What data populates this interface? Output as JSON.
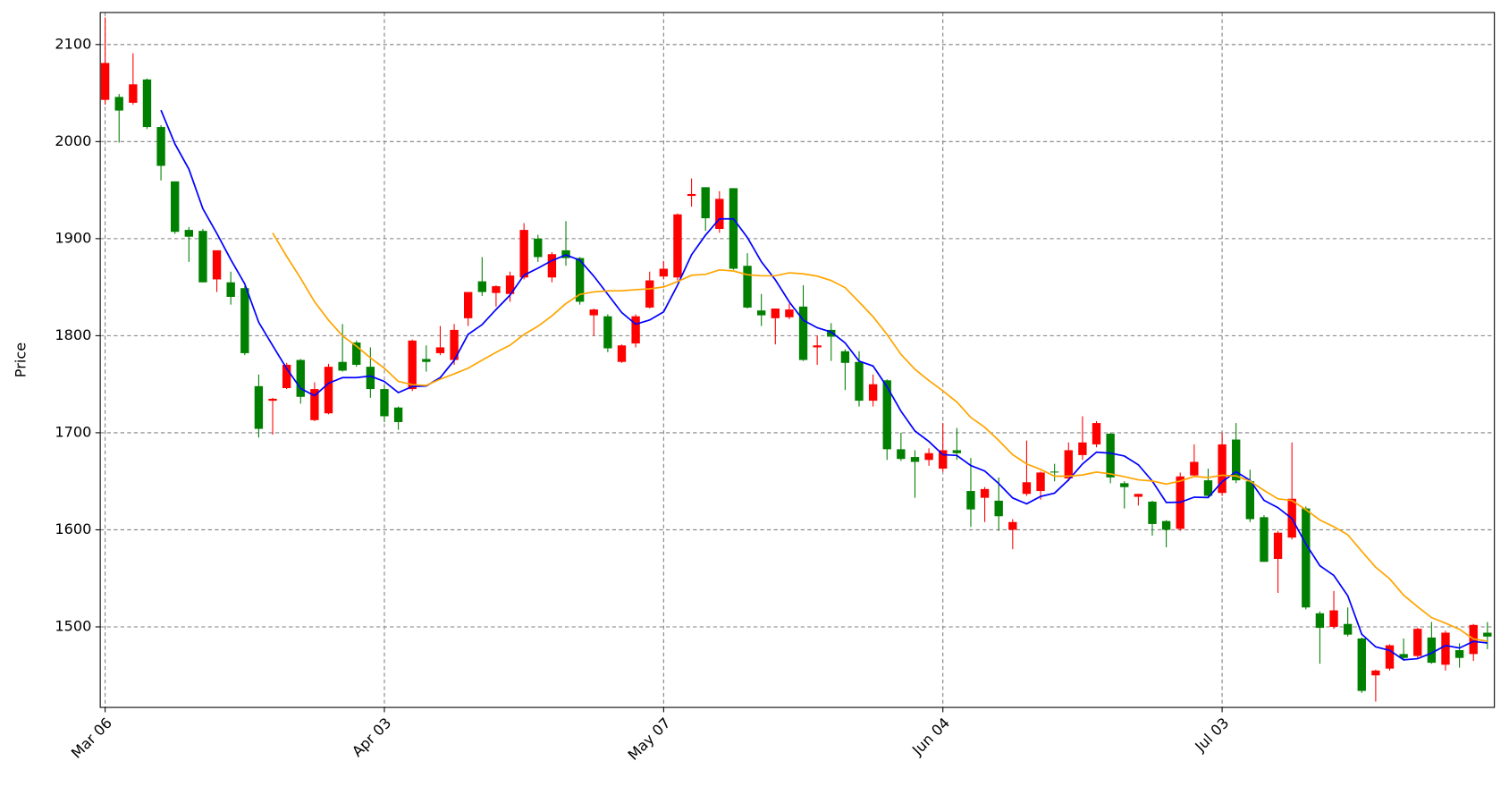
{
  "chart_data": {
    "type": "candlestick",
    "ylabel": "Price",
    "categories": [
      "Mar 06",
      null,
      null,
      null,
      null,
      null,
      null,
      null,
      null,
      null,
      null,
      null,
      null,
      null,
      null,
      null,
      null,
      null,
      null,
      null,
      "Apr 03",
      null,
      null,
      null,
      null,
      null,
      null,
      null,
      null,
      null,
      null,
      null,
      null,
      null,
      null,
      null,
      null,
      null,
      null,
      null,
      "May 07",
      null,
      null,
      null,
      null,
      null,
      null,
      null,
      null,
      null,
      null,
      null,
      null,
      null,
      null,
      null,
      null,
      null,
      null,
      null,
      "Jun 04",
      null,
      null,
      null,
      null,
      null,
      null,
      null,
      null,
      null,
      null,
      null,
      null,
      null,
      null,
      null,
      null,
      null,
      null,
      null,
      "Jul 03",
      null,
      null,
      null,
      null,
      null,
      null,
      null,
      null,
      null,
      null,
      null,
      null,
      null,
      null,
      null,
      null,
      null,
      null,
      null
    ],
    "open": [
      2043,
      2046,
      2040,
      2064,
      2015,
      1959,
      1909,
      1908,
      1858,
      1855,
      1849,
      1748,
      1733,
      1746,
      1775,
      1713,
      1720,
      1773,
      1793,
      1768,
      1745,
      1726,
      1745,
      1776,
      1782,
      1775,
      1818,
      1856,
      1844,
      1843,
      1860,
      1900,
      1860,
      1888,
      1880,
      1821,
      1820,
      1773,
      1792,
      1829,
      1861,
      1860,
      1944,
      1953,
      1910,
      1952,
      1872,
      1826,
      1818,
      1819,
      1830,
      1788,
      1806,
      1784,
      1773,
      1733,
      1754,
      1683,
      1675,
      1672,
      1663,
      1682,
      1640,
      1633,
      1630,
      1600,
      1637,
      1640,
      1660,
      1653,
      1677,
      1688,
      1699,
      1648,
      1634,
      1629,
      1609,
      1601,
      1656,
      1651,
      1638,
      1693,
      1650,
      1613,
      1570,
      1592,
      1622,
      1514,
      1500,
      1503,
      1488,
      1450,
      1457,
      1472,
      1470,
      1489,
      1461,
      1476,
      1472,
      1494
    ],
    "high": [
      2128,
      2049,
      2091,
      2065,
      2017,
      1959,
      1912,
      1910,
      1888,
      1866,
      1851,
      1760,
      1736,
      1772,
      1776,
      1752,
      1771,
      1812,
      1795,
      1788,
      1749,
      1727,
      1796,
      1790,
      1810,
      1812,
      1845,
      1881,
      1852,
      1866,
      1916,
      1904,
      1886,
      1918,
      1881,
      1828,
      1822,
      1791,
      1822,
      1866,
      1877,
      1926,
      1962,
      1953,
      1949,
      1952,
      1885,
      1843,
      1828,
      1833,
      1852,
      1800,
      1813,
      1786,
      1784,
      1760,
      1755,
      1700,
      1682,
      1684,
      1710,
      1705,
      1674,
      1644,
      1654,
      1611,
      1692,
      1660,
      1668,
      1690,
      1717,
      1712,
      1700,
      1650,
      1637,
      1630,
      1610,
      1659,
      1688,
      1663,
      1700,
      1710,
      1662,
      1615,
      1599,
      1690,
      1624,
      1516,
      1537,
      1520,
      1489,
      1456,
      1482,
      1488,
      1499,
      1505,
      1496,
      1483,
      1503,
      1505
    ],
    "low": [
      2038,
      1999,
      2038,
      2013,
      1960,
      1905,
      1876,
      1855,
      1845,
      1832,
      1780,
      1695,
      1698,
      1745,
      1730,
      1712,
      1719,
      1763,
      1768,
      1736,
      1711,
      1703,
      1743,
      1763,
      1780,
      1770,
      1810,
      1841,
      1830,
      1835,
      1858,
      1876,
      1855,
      1872,
      1832,
      1800,
      1783,
      1772,
      1788,
      1828,
      1858,
      1857,
      1933,
      1908,
      1906,
      1868,
      1828,
      1810,
      1791,
      1817,
      1774,
      1770,
      1774,
      1744,
      1727,
      1727,
      1672,
      1671,
      1633,
      1666,
      1660,
      1672,
      1603,
      1608,
      1599,
      1580,
      1635,
      1631,
      1650,
      1650,
      1672,
      1685,
      1648,
      1622,
      1625,
      1594,
      1582,
      1599,
      1655,
      1634,
      1635,
      1648,
      1608,
      1567,
      1535,
      1590,
      1518,
      1462,
      1498,
      1490,
      1432,
      1423,
      1455,
      1465,
      1468,
      1462,
      1455,
      1458,
      1465,
      1477
    ],
    "close": [
      2081,
      2032,
      2059,
      2015,
      1975,
      1907,
      1902,
      1855,
      1888,
      1840,
      1782,
      1704,
      1735,
      1770,
      1737,
      1745,
      1768,
      1764,
      1770,
      1745,
      1717,
      1711,
      1795,
      1773,
      1788,
      1806,
      1845,
      1845,
      1851,
      1862,
      1909,
      1881,
      1884,
      1880,
      1835,
      1827,
      1787,
      1790,
      1820,
      1857,
      1869,
      1925,
      1946,
      1921,
      1941,
      1869,
      1829,
      1821,
      1828,
      1827,
      1775,
      1790,
      1799,
      1772,
      1733,
      1750,
      1683,
      1673,
      1670,
      1679,
      1682,
      1679,
      1621,
      1642,
      1614,
      1608,
      1649,
      1659,
      1659,
      1682,
      1690,
      1710,
      1654,
      1644,
      1637,
      1606,
      1600,
      1655,
      1670,
      1635,
      1688,
      1651,
      1611,
      1567,
      1597,
      1632,
      1520,
      1499,
      1517,
      1492,
      1434,
      1455,
      1481,
      1468,
      1498,
      1463,
      1494,
      1468,
      1502,
      1490
    ],
    "up_color": "#ff0000",
    "down_color": "#008000",
    "lines": [
      {
        "color": "#0000ff",
        "values": [
          null,
          null,
          null,
          null,
          2032.4,
          1997.6,
          1971.6,
          1930.8,
          1905.4,
          1878.4,
          1853.4,
          1813.8,
          1789.8,
          1766.2,
          1745.6,
          1738.2,
          1751,
          1756.8,
          1756.8,
          1758.4,
          1752.8,
          1741.4,
          1747.6,
          1748.2,
          1756.8,
          1774.6,
          1801.4,
          1811.4,
          1827,
          1841.8,
          1862.4,
          1869.6,
          1877.4,
          1883.2,
          1877.8,
          1861.4,
          1842.6,
          1823.8,
          1811.8,
          1816.2,
          1824.6,
          1852.2,
          1883.4,
          1903.6,
          1920.4,
          1920.4,
          1901.2,
          1876.2,
          1857.6,
          1834.8,
          1816,
          1808.2,
          1803.8,
          1792.6,
          1773.8,
          1768.8,
          1747.4,
          1722.2,
          1701.8,
          1691,
          1677.4,
          1676.6,
          1666.2,
          1660.6,
          1647.6,
          1632.8,
          1626.8,
          1634.4,
          1637.8,
          1651.4,
          1667.8,
          1680,
          1679,
          1676,
          1667,
          1650.2,
          1628.2,
          1628.4,
          1633.6,
          1633.2,
          1649.6,
          1659.8,
          1651,
          1630.4,
          1622.8,
          1611.6,
          1585.4,
          1563,
          1553,
          1532,
          1492.4,
          1479.4,
          1475.8,
          1466,
          1467.2,
          1473,
          1480.8,
          1478.2,
          1485,
          1483.4
        ]
      },
      {
        "color": "#ffa500",
        "values": [
          null,
          null,
          null,
          null,
          null,
          null,
          null,
          null,
          null,
          null,
          null,
          null,
          1905.8,
          1881.8,
          1859.2,
          1835,
          1816,
          1799.8,
          1789.2,
          1777.2,
          1766.5,
          1752.9,
          1749.5,
          1748.8,
          1755.2,
          1760.7,
          1766.5,
          1774.8,
          1782.9,
          1790.2,
          1801.3,
          1809.8,
          1820.5,
          1833.1,
          1842.6,
          1845.1,
          1846.2,
          1846.3,
          1847.4,
          1848.3,
          1850.2,
          1855.8,
          1862.3,
          1863.2,
          1867.8,
          1866.7,
          1862.8,
          1861.7,
          1861.8,
          1864.8,
          1863.7,
          1861.4,
          1856.9,
          1849.5,
          1834.7,
          1819.6,
          1801.3,
          1780.7,
          1765.4,
          1753.8,
          1743.2,
          1731.7,
          1715.8,
          1705.6,
          1692.1,
          1677.4,
          1667.9,
          1662.2,
          1655.2,
          1655.2,
          1656.5,
          1659.5,
          1657.6,
          1654.7,
          1651.5,
          1650.3,
          1647.1,
          1650.2,
          1655,
          1653.9,
          1656.2,
          1655.5,
          1650.1,
          1640.6,
          1631.9,
          1630.2,
          1620.7,
          1610.1,
          1603.2,
          1594.9,
          1577.9,
          1561.4,
          1549.5,
          1532.6,
          1520.8,
          1509.5,
          1503.8,
          1497.5,
          1487.5,
          1485.2
        ]
      }
    ],
    "xlim": [
      -0.35,
      99.5
    ],
    "ylim": [
      1417,
      2133
    ],
    "yticks": [
      1500,
      1600,
      1700,
      1800,
      1900,
      2000,
      2100
    ],
    "grid": true
  }
}
